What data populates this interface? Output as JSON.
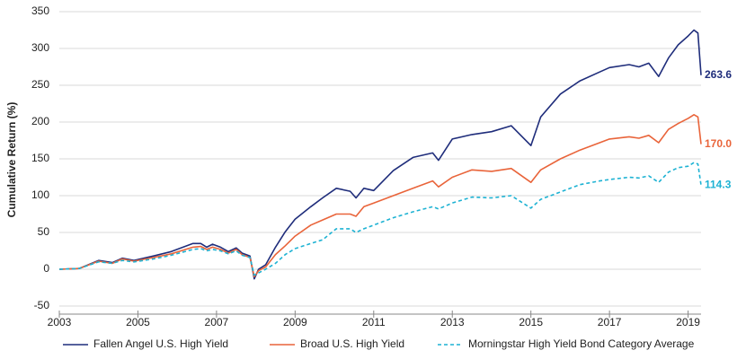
{
  "chart_data": {
    "type": "line",
    "y_label": "Cumulative Return (%)",
    "x": [
      2003,
      2003.5,
      2004,
      2004.35,
      2004.6,
      2004.9,
      2005.4,
      2005.85,
      2006.4,
      2006.6,
      2006.75,
      2006.9,
      2007.1,
      2007.3,
      2007.5,
      2007.65,
      2007.85,
      2007.96,
      2008.07,
      2008.25,
      2008.5,
      2008.75,
      2009,
      2009.4,
      2009.7,
      2010.05,
      2010.4,
      2010.55,
      2010.75,
      2011,
      2011.5,
      2012,
      2012.5,
      2012.65,
      2013,
      2013.5,
      2014,
      2014.5,
      2015,
      2015.25,
      2015.75,
      2016.25,
      2016.75,
      2017,
      2017.5,
      2017.75,
      2018,
      2018.25,
      2018.5,
      2018.75,
      2019,
      2019.15,
      2019.25,
      2019.33
    ],
    "series": [
      {
        "name": "Fallen Angel U.S. High Yield",
        "color": "#1f2d7b",
        "dashed": false,
        "values": [
          0,
          1,
          12,
          9,
          15,
          12,
          18,
          24,
          35,
          35,
          30,
          34,
          30,
          24,
          29,
          22,
          18,
          -13,
          0,
          6,
          30,
          51,
          68,
          85,
          97,
          110,
          106,
          97,
          110,
          107,
          134,
          152,
          158,
          148,
          177,
          183,
          187,
          195,
          168,
          207,
          238,
          256,
          268,
          274,
          278,
          275,
          280,
          262,
          287,
          305,
          317,
          325,
          321,
          263.6
        ],
        "value_labels": [
          null,
          null,
          null,
          null,
          null,
          null,
          null,
          null,
          null,
          null,
          null,
          null,
          null,
          null,
          null,
          null,
          null,
          null,
          null,
          null,
          null,
          null,
          null,
          null,
          null,
          null,
          null,
          null,
          null,
          null,
          null,
          null,
          null,
          null,
          null,
          null,
          null,
          null,
          null,
          null,
          null,
          null,
          null,
          null,
          null,
          null,
          null,
          null,
          null,
          null,
          null,
          null,
          null,
          "263.6"
        ]
      },
      {
        "name": "Broad U.S. High Yield",
        "color": "#e9643a",
        "dashed": false,
        "values": [
          0,
          1,
          11,
          8,
          14,
          11,
          16,
          21,
          30,
          31,
          27,
          30,
          27,
          22,
          27,
          20,
          16,
          -10,
          -2,
          3,
          20,
          32,
          45,
          60,
          67,
          75,
          75,
          72,
          85,
          90,
          100,
          110,
          120,
          112,
          125,
          135,
          133,
          137,
          118,
          135,
          150,
          162,
          172,
          177,
          180,
          178,
          182,
          172,
          190,
          198,
          205,
          210,
          207,
          170.0
        ],
        "value_labels": [
          null,
          null,
          null,
          null,
          null,
          null,
          null,
          null,
          null,
          null,
          null,
          null,
          null,
          null,
          null,
          null,
          null,
          null,
          null,
          null,
          null,
          null,
          null,
          null,
          null,
          null,
          null,
          null,
          null,
          null,
          null,
          null,
          null,
          null,
          null,
          null,
          null,
          null,
          null,
          null,
          null,
          null,
          null,
          null,
          null,
          null,
          null,
          null,
          null,
          null,
          null,
          null,
          null,
          "170.0"
        ]
      },
      {
        "name": "Morningstar High Yield Bond Category Average",
        "color": "#1db2d3",
        "dashed": true,
        "values": [
          0,
          1,
          10,
          8,
          12,
          10,
          14,
          19,
          27,
          28,
          25,
          27,
          25,
          21,
          25,
          19,
          16,
          -8,
          -5,
          0,
          8,
          20,
          28,
          35,
          40,
          55,
          55,
          50,
          55,
          60,
          70,
          78,
          85,
          82,
          90,
          98,
          97,
          100,
          83,
          95,
          105,
          115,
          120,
          122,
          125,
          124,
          127,
          118,
          132,
          138,
          140,
          145,
          143,
          114.3
        ],
        "value_labels": [
          null,
          null,
          null,
          null,
          null,
          null,
          null,
          null,
          null,
          null,
          null,
          null,
          null,
          null,
          null,
          null,
          null,
          null,
          null,
          null,
          null,
          null,
          null,
          null,
          null,
          null,
          null,
          null,
          null,
          null,
          null,
          null,
          null,
          null,
          null,
          null,
          null,
          null,
          null,
          null,
          null,
          null,
          null,
          null,
          null,
          null,
          null,
          null,
          null,
          null,
          null,
          null,
          null,
          "114.3"
        ]
      }
    ],
    "xlim": [
      2003,
      2019.33
    ],
    "xticks": [
      2003,
      2005,
      2007,
      2009,
      2011,
      2013,
      2015,
      2017,
      2019
    ],
    "ylim": [
      -50,
      350
    ],
    "yticks": [
      -50,
      0,
      50,
      100,
      150,
      200,
      250,
      300,
      350
    ],
    "grid": true,
    "legend": "bottom"
  }
}
